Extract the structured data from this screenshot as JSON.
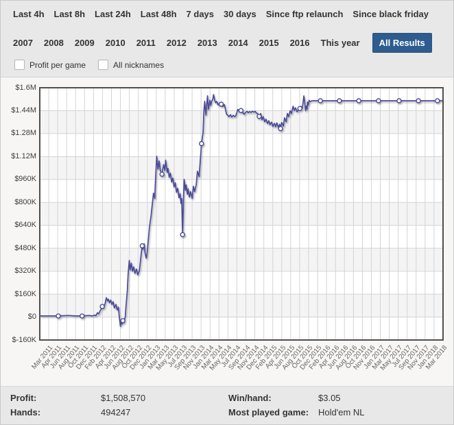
{
  "header": {
    "time_filters": [
      "Last 4h",
      "Last 8h",
      "Last 24h",
      "Last 48h",
      "7 days",
      "30 days",
      "Since ftp relaunch",
      "Since black friday"
    ],
    "year_filters": [
      "2007",
      "2008",
      "2009",
      "2010",
      "2011",
      "2012",
      "2013",
      "2014",
      "2015",
      "2016",
      "This year"
    ],
    "active_filter": "All Results",
    "checkboxes": [
      {
        "label": "Profit per game",
        "checked": false
      },
      {
        "label": "All nicknames",
        "checked": false
      }
    ]
  },
  "colors": {
    "accent_blue": "#2e5c8f",
    "line": "#4b4b9a",
    "marker_fill": "#ffffff",
    "grid": "#d4d4d4",
    "band": "#f4f4f4",
    "plot_bg": "#ffffff",
    "plot_border": "#4f4f4f",
    "page_bg": "#e9e8e8",
    "chart_section_bg": "#f7f6f4"
  },
  "chart_data": {
    "type": "line",
    "title": "",
    "xlabel": "",
    "ylabel": "",
    "grid": true,
    "legend": false,
    "unit": "USD thousands",
    "ylim_thousands": [
      -160,
      1600
    ],
    "y_ticks": [
      "$1.6M",
      "$1.44M",
      "$1.28M",
      "$1.12M",
      "$960K",
      "$800K",
      "$640K",
      "$480K",
      "$320K",
      "$160K",
      "$0",
      "$-160K"
    ],
    "y_tick_values_thousands": [
      1600,
      1440,
      1280,
      1120,
      960,
      800,
      640,
      480,
      320,
      160,
      0,
      -160
    ],
    "x_labels": [
      "Mar 2011",
      "Apr 2011",
      "Jun 2011",
      "Aug 2011",
      "Oct 2011",
      "Dec 2011",
      "Feb 2012",
      "Apr 2012",
      "Jun 2012",
      "Aug 2012",
      "Oct 2012",
      "Dec 2012",
      "Jan 2013",
      "Mar 2013",
      "May 2013",
      "Jul 2013",
      "Sep 2013",
      "Nov 2013",
      "Jan 2014",
      "Mar 2014",
      "May 2014",
      "Jul 2014",
      "Sep 2014",
      "Nov 2014",
      "Dec 2014",
      "Feb 2015",
      "Apr 2015",
      "Jun 2015",
      "Aug 2015",
      "Oct 2015",
      "Dec 2015",
      "Feb 2016",
      "Apr 2016",
      "Jun 2016",
      "Aug 2016",
      "Oct 2016",
      "Nov 2016",
      "Jan 2017",
      "Mar 2017",
      "May 2017",
      "Jul 2017",
      "Sep 2017",
      "Nov 2017",
      "Jan 2018",
      "Mar 2018"
    ],
    "series": [
      {
        "name": "Cumulative profit",
        "color": "#4b4b9a",
        "final_value": "$1,508,570",
        "points": [
          [
            0.0,
            8
          ],
          [
            0.024,
            8
          ],
          [
            0.046,
            8
          ],
          [
            0.071,
            11
          ],
          [
            0.088,
            8
          ],
          [
            0.105,
            8
          ],
          [
            0.122,
            11
          ],
          [
            0.131,
            8
          ],
          [
            0.136,
            14
          ],
          [
            0.139,
            9
          ],
          [
            0.143,
            30
          ],
          [
            0.146,
            22
          ],
          [
            0.15,
            45
          ],
          [
            0.153,
            60
          ],
          [
            0.155,
            74
          ],
          [
            0.158,
            62
          ],
          [
            0.162,
            95
          ],
          [
            0.165,
            135
          ],
          [
            0.168,
            112
          ],
          [
            0.17,
            125
          ],
          [
            0.173,
            100
          ],
          [
            0.176,
            118
          ],
          [
            0.179,
            88
          ],
          [
            0.182,
            107
          ],
          [
            0.185,
            64
          ],
          [
            0.189,
            88
          ],
          [
            0.192,
            50
          ],
          [
            0.195,
            69
          ],
          [
            0.197,
            6
          ],
          [
            0.2,
            -65
          ],
          [
            0.202,
            -30
          ],
          [
            0.204,
            -48
          ],
          [
            0.206,
            -25
          ],
          [
            0.209,
            -40
          ],
          [
            0.212,
            5
          ],
          [
            0.214,
            80
          ],
          [
            0.217,
            180
          ],
          [
            0.219,
            300
          ],
          [
            0.222,
            395
          ],
          [
            0.224,
            330
          ],
          [
            0.227,
            375
          ],
          [
            0.23,
            320
          ],
          [
            0.233,
            350
          ],
          [
            0.236,
            305
          ],
          [
            0.24,
            335
          ],
          [
            0.243,
            295
          ],
          [
            0.247,
            322
          ],
          [
            0.249,
            374
          ],
          [
            0.252,
            455
          ],
          [
            0.254,
            497
          ],
          [
            0.256,
            473
          ],
          [
            0.259,
            511
          ],
          [
            0.261,
            446
          ],
          [
            0.264,
            411
          ],
          [
            0.266,
            441
          ],
          [
            0.269,
            531
          ],
          [
            0.272,
            627
          ],
          [
            0.276,
            708
          ],
          [
            0.279,
            789
          ],
          [
            0.282,
            865
          ],
          [
            0.285,
            827
          ],
          [
            0.287,
            961
          ],
          [
            0.29,
            1122
          ],
          [
            0.293,
            1032
          ],
          [
            0.296,
            1089
          ],
          [
            0.299,
            1023
          ],
          [
            0.303,
            997
          ],
          [
            0.307,
            1064
          ],
          [
            0.31,
            1023
          ],
          [
            0.312,
            1095
          ],
          [
            0.316,
            1009
          ],
          [
            0.318,
            1037
          ],
          [
            0.321,
            975
          ],
          [
            0.324,
            1004
          ],
          [
            0.327,
            942
          ],
          [
            0.33,
            970
          ],
          [
            0.333,
            908
          ],
          [
            0.336,
            937
          ],
          [
            0.339,
            870
          ],
          [
            0.342,
            899
          ],
          [
            0.345,
            832
          ],
          [
            0.348,
            861
          ],
          [
            0.35,
            794
          ],
          [
            0.352,
            827
          ],
          [
            0.354,
            575
          ],
          [
            0.356,
            780
          ],
          [
            0.358,
            961
          ],
          [
            0.361,
            885
          ],
          [
            0.363,
            923
          ],
          [
            0.366,
            856
          ],
          [
            0.368,
            894
          ],
          [
            0.371,
            837
          ],
          [
            0.374,
            875
          ],
          [
            0.378,
            827
          ],
          [
            0.381,
            913
          ],
          [
            0.384,
            875
          ],
          [
            0.388,
            923
          ],
          [
            0.391,
            1018
          ],
          [
            0.395,
            980
          ],
          [
            0.398,
            1089
          ],
          [
            0.401,
            1210
          ],
          [
            0.405,
            1290
          ],
          [
            0.407,
            1440
          ],
          [
            0.409,
            1505
          ],
          [
            0.411,
            1430
          ],
          [
            0.412,
            1409
          ],
          [
            0.414,
            1480
          ],
          [
            0.416,
            1544
          ],
          [
            0.418,
            1449
          ],
          [
            0.42,
            1480
          ],
          [
            0.422,
            1513
          ],
          [
            0.424,
            1478
          ],
          [
            0.426,
            1505
          ],
          [
            0.429,
            1520
          ],
          [
            0.431,
            1552
          ],
          [
            0.434,
            1510
          ],
          [
            0.436,
            1495
          ],
          [
            0.439,
            1505
          ],
          [
            0.442,
            1480
          ],
          [
            0.446,
            1495
          ],
          [
            0.45,
            1485
          ],
          [
            0.454,
            1470
          ],
          [
            0.458,
            1482
          ],
          [
            0.463,
            1417
          ],
          [
            0.466,
            1408
          ],
          [
            0.469,
            1398
          ],
          [
            0.473,
            1412
          ],
          [
            0.476,
            1396
          ],
          [
            0.48,
            1408
          ],
          [
            0.483,
            1398
          ],
          [
            0.486,
            1404
          ],
          [
            0.491,
            1449
          ],
          [
            0.495,
            1432
          ],
          [
            0.499,
            1441
          ],
          [
            0.503,
            1428
          ],
          [
            0.507,
            1415
          ],
          [
            0.51,
            1426
          ],
          [
            0.514,
            1436
          ],
          [
            0.517,
            1426
          ],
          [
            0.52,
            1434
          ],
          [
            0.524,
            1428
          ],
          [
            0.527,
            1436
          ],
          [
            0.531,
            1430
          ],
          [
            0.534,
            1436
          ],
          [
            0.537,
            1424
          ],
          [
            0.541,
            1418
          ],
          [
            0.544,
            1400
          ],
          [
            0.548,
            1420
          ],
          [
            0.551,
            1376
          ],
          [
            0.554,
            1398
          ],
          [
            0.558,
            1362
          ],
          [
            0.561,
            1380
          ],
          [
            0.565,
            1350
          ],
          [
            0.568,
            1370
          ],
          [
            0.571,
            1342
          ],
          [
            0.575,
            1360
          ],
          [
            0.578,
            1330
          ],
          [
            0.582,
            1352
          ],
          [
            0.585,
            1328
          ],
          [
            0.588,
            1355
          ],
          [
            0.592,
            1322
          ],
          [
            0.595,
            1345
          ],
          [
            0.597,
            1315
          ],
          [
            0.6,
            1358
          ],
          [
            0.604,
            1332
          ],
          [
            0.607,
            1390
          ],
          [
            0.611,
            1362
          ],
          [
            0.614,
            1420
          ],
          [
            0.617,
            1398
          ],
          [
            0.621,
            1440
          ],
          [
            0.624,
            1420
          ],
          [
            0.628,
            1471
          ],
          [
            0.631,
            1442
          ],
          [
            0.634,
            1460
          ],
          [
            0.638,
            1432
          ],
          [
            0.641,
            1445
          ],
          [
            0.645,
            1455
          ],
          [
            0.648,
            1470
          ],
          [
            0.651,
            1458
          ],
          [
            0.653,
            1500
          ],
          [
            0.655,
            1543
          ],
          [
            0.657,
            1498
          ],
          [
            0.659,
            1440
          ],
          [
            0.661,
            1472
          ],
          [
            0.663,
            1450
          ],
          [
            0.664,
            1500
          ],
          [
            0.666,
            1478
          ],
          [
            0.668,
            1512
          ],
          [
            0.67,
            1503
          ],
          [
            0.675,
            1509
          ],
          [
            0.696,
            1509
          ],
          [
            0.719,
            1509
          ],
          [
            0.743,
            1509
          ],
          [
            0.767,
            1509
          ],
          [
            0.791,
            1509
          ],
          [
            0.816,
            1509
          ],
          [
            0.84,
            1509
          ],
          [
            0.866,
            1509
          ],
          [
            0.891,
            1509
          ],
          [
            0.915,
            1509
          ],
          [
            0.939,
            1509
          ],
          [
            0.963,
            1509
          ],
          [
            0.986,
            1509
          ],
          [
            1.0,
            1509
          ]
        ],
        "markers": [
          [
            0.046,
            8
          ],
          [
            0.105,
            8
          ],
          [
            0.155,
            74
          ],
          [
            0.206,
            -25
          ],
          [
            0.254,
            497
          ],
          [
            0.303,
            997
          ],
          [
            0.354,
            575
          ],
          [
            0.401,
            1210
          ],
          [
            0.45,
            1485
          ],
          [
            0.499,
            1441
          ],
          [
            0.544,
            1400
          ],
          [
            0.597,
            1315
          ],
          [
            0.645,
            1455
          ],
          [
            0.696,
            1509
          ],
          [
            0.743,
            1509
          ],
          [
            0.791,
            1509
          ],
          [
            0.84,
            1509
          ],
          [
            0.891,
            1509
          ],
          [
            0.939,
            1509
          ],
          [
            0.986,
            1509
          ]
        ]
      }
    ]
  },
  "stats": {
    "profit_label": "Profit:",
    "profit_value": "$1,508,570",
    "hands_label": "Hands:",
    "hands_value": "494247",
    "win_hand_label": "Win/hand:",
    "win_hand_value": "$3.05",
    "most_played_label": "Most played game:",
    "most_played_value": "Hold'em NL"
  }
}
